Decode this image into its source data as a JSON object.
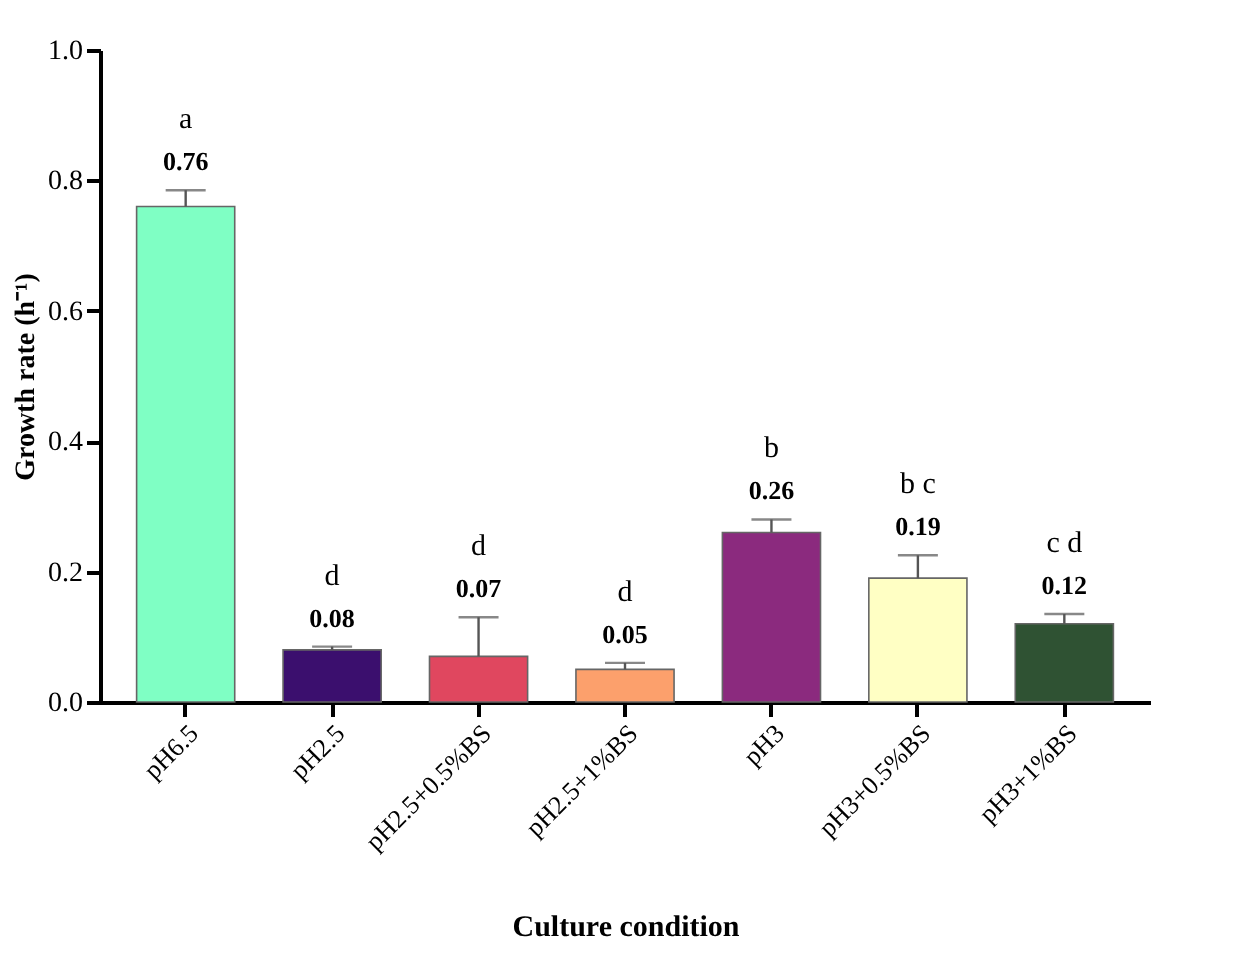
{
  "chart_data": {
    "type": "bar",
    "xlabel": "Culture condition",
    "ylabel": "Growth rate (h⁻¹)",
    "categories": [
      "pH6.5",
      "pH2.5",
      "pH2.5+0.5%BS",
      "pH2.5+1%BS",
      "pH3",
      "pH3+0.5%BS",
      "pH3+1%BS"
    ],
    "values": [
      0.76,
      0.08,
      0.07,
      0.05,
      0.26,
      0.19,
      0.12
    ],
    "colors": [
      "#7fffc4",
      "#3b0f6e",
      "#e0475f",
      "#fca06c",
      "#8b2a7e",
      "#ffffc4",
      "#2f5233"
    ],
    "errors": [
      0.025,
      0.005,
      0.06,
      0.01,
      0.02,
      0.035,
      0.015
    ],
    "data_labels": true,
    "annotations": [
      {
        "text": "a",
        "x": "pH6.5",
        "y": 0.785
      },
      {
        "text": "d",
        "x": "pH2.5",
        "y": 0.085
      },
      {
        "text": "d",
        "x": "pH2.5+0.5%BS",
        "y": 0.13
      },
      {
        "text": "d",
        "x": "pH2.5+1%BS",
        "y": 0.06
      },
      {
        "text": "b",
        "x": "pH3",
        "y": 0.28
      },
      {
        "text": "b c",
        "x": "pH3+0.5%BS",
        "y": 0.225
      },
      {
        "text": "c d",
        "x": "pH3+1%BS",
        "y": 0.135
      }
    ],
    "ylim": [
      0,
      1.0
    ],
    "yticks": [
      {
        "value": 0,
        "label": "0.0"
      },
      0.2,
      0.4,
      0.6,
      0.8,
      {
        "value": 1.0,
        "label": "1.0"
      }
    ],
    "grid": false
  }
}
